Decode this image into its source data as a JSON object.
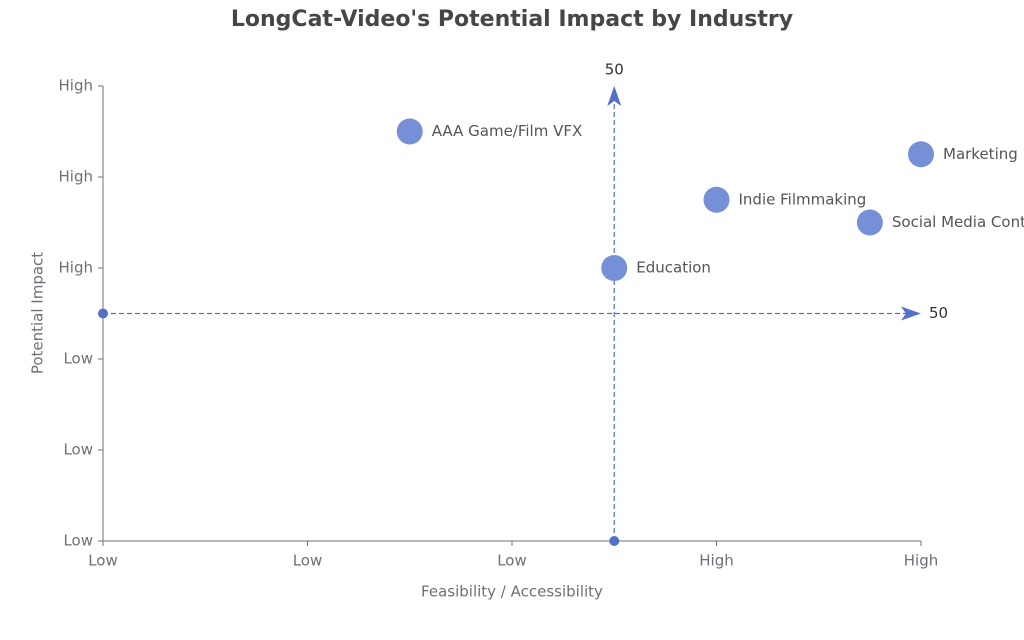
{
  "chart_data": {
    "type": "scatter",
    "title": "LongCat-Video's Potential Impact by Industry",
    "x_label": "Feasibility / Accessibility",
    "y_label": "Potential Impact",
    "labels": [
      "AAA Game/Film VFX",
      "Marketing",
      "Indie Filmmaking",
      "Social Media Content",
      "Education"
    ],
    "x": [
      30,
      80,
      60,
      75,
      50
    ],
    "y": [
      90,
      85,
      75,
      70,
      60
    ],
    "color": "#7590d6",
    "xlim": [
      0,
      80
    ],
    "xticks": [
      {
        "value": 0,
        "label": "Low"
      },
      {
        "value": 20,
        "label": "Low"
      },
      {
        "value": 40,
        "label": "Low"
      },
      {
        "value": 60,
        "label": "High"
      },
      {
        "value": 80,
        "label": "High"
      }
    ],
    "ylim": [
      0,
      100
    ],
    "yticks": [
      {
        "value": 0,
        "label": "Low"
      },
      {
        "value": 20,
        "label": "Low"
      },
      {
        "value": 40,
        "label": "Low"
      },
      {
        "value": 60,
        "label": "High"
      },
      {
        "value": 80,
        "label": "High"
      },
      {
        "value": 100,
        "label": "High"
      }
    ],
    "mark_lines": [
      {
        "axis": "x",
        "value": 50
      },
      {
        "axis": "y",
        "value": 50
      }
    ],
    "mark_line_color": "#5470c6",
    "grid": false
  }
}
